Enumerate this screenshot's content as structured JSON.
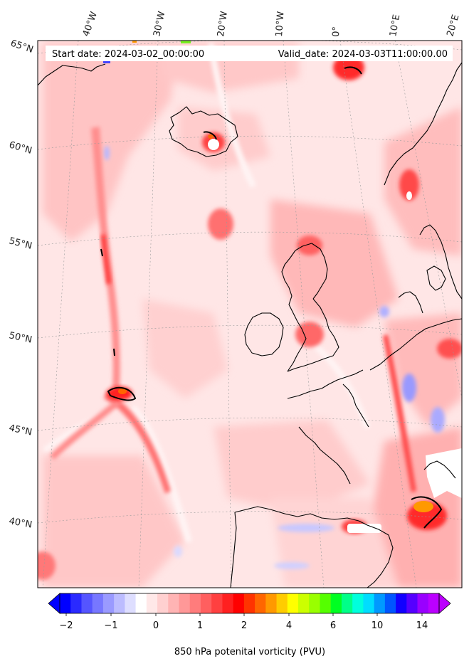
{
  "header": {
    "start_label": "Start date: 2024-03-02_00:00:00",
    "valid_label": "Valid_date: 2024-03-03T11:00:00.00"
  },
  "map": {
    "lon_labels": [
      "40°W",
      "30°W",
      "20°W",
      "10°W",
      "0°",
      "10°E",
      "20°E"
    ],
    "lat_labels": [
      "65°N",
      "60°N",
      "55°N",
      "50°N",
      "45°N",
      "40°N"
    ]
  },
  "colorbar": {
    "ticks": [
      "−2",
      "−1",
      "0",
      "1",
      "2",
      "4",
      "6",
      "10",
      "14"
    ],
    "label": "850 hPa potenital vorticity (PVU)",
    "colors": [
      "#0000ff",
      "#2a2aff",
      "#5555ff",
      "#7777ff",
      "#9a9aff",
      "#bcbcff",
      "#dedeff",
      "#ffffff",
      "#ffe8e8",
      "#ffd0d0",
      "#ffb4b4",
      "#ff9898",
      "#ff7c7c",
      "#ff5f5f",
      "#ff4040",
      "#ff2020",
      "#ff0000",
      "#ff3300",
      "#ff6600",
      "#ff9900",
      "#ffcc00",
      "#ffff00",
      "#ccff00",
      "#99ff00",
      "#55ff00",
      "#00ff22",
      "#00ff88",
      "#00ffdd",
      "#00ddff",
      "#0099ff",
      "#0055ff",
      "#1100ff",
      "#5500ff",
      "#9900ff",
      "#bb00ff"
    ],
    "under_color": "#0000ff",
    "over_color": "#bb00ff"
  }
}
